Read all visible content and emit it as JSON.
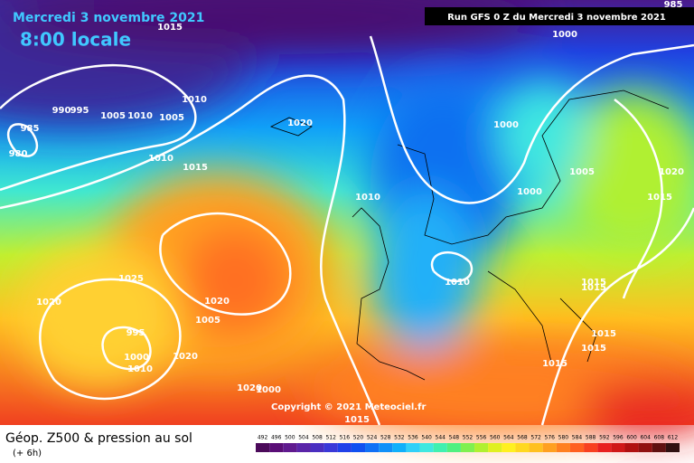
{
  "header": {
    "date": "Mercredi 3 novembre 2021",
    "time": "8:00 locale",
    "run": "Run GFS 0 Z du Mercredi 3 novembre 2021"
  },
  "footer": {
    "title": "Géop. Z500 & pression au sol",
    "lead": "(+ 6h)",
    "copyright": "Copyright © 2021 Meteociel.fr"
  },
  "isobar_labels": [
    985,
    1015,
    1000,
    985,
    980,
    990,
    995,
    1005,
    1010,
    1010,
    1005,
    1010,
    1020,
    1010,
    1015,
    1000,
    1000,
    1005,
    1020,
    1015,
    1010,
    1015,
    1020,
    1025,
    1020,
    1005,
    995,
    1000,
    1010,
    1020,
    1020,
    1000,
    1015,
    1015,
    1015,
    1015,
    1015
  ],
  "scale": {
    "values": [
      492,
      496,
      500,
      504,
      508,
      512,
      516,
      520,
      524,
      528,
      532,
      536,
      540,
      544,
      548,
      552,
      556,
      560,
      564,
      568,
      572,
      576,
      580,
      584,
      588,
      592,
      596,
      600,
      604,
      608,
      612
    ],
    "colors": [
      "#4b0a5a",
      "#5a0e77",
      "#601a8f",
      "#5a24a8",
      "#4a2ec0",
      "#3a38d8",
      "#2040e8",
      "#1050f0",
      "#1070f5",
      "#1090f8",
      "#10b0fa",
      "#30d0f8",
      "#40e8e0",
      "#40f0b0",
      "#50f080",
      "#80f050",
      "#b0f030",
      "#e0f020",
      "#fff020",
      "#ffd820",
      "#ffc020",
      "#ffa020",
      "#ff8020",
      "#ff6020",
      "#f84020",
      "#e82020",
      "#d01818",
      "#b01010",
      "#901010",
      "#601010",
      "#301010"
    ]
  }
}
